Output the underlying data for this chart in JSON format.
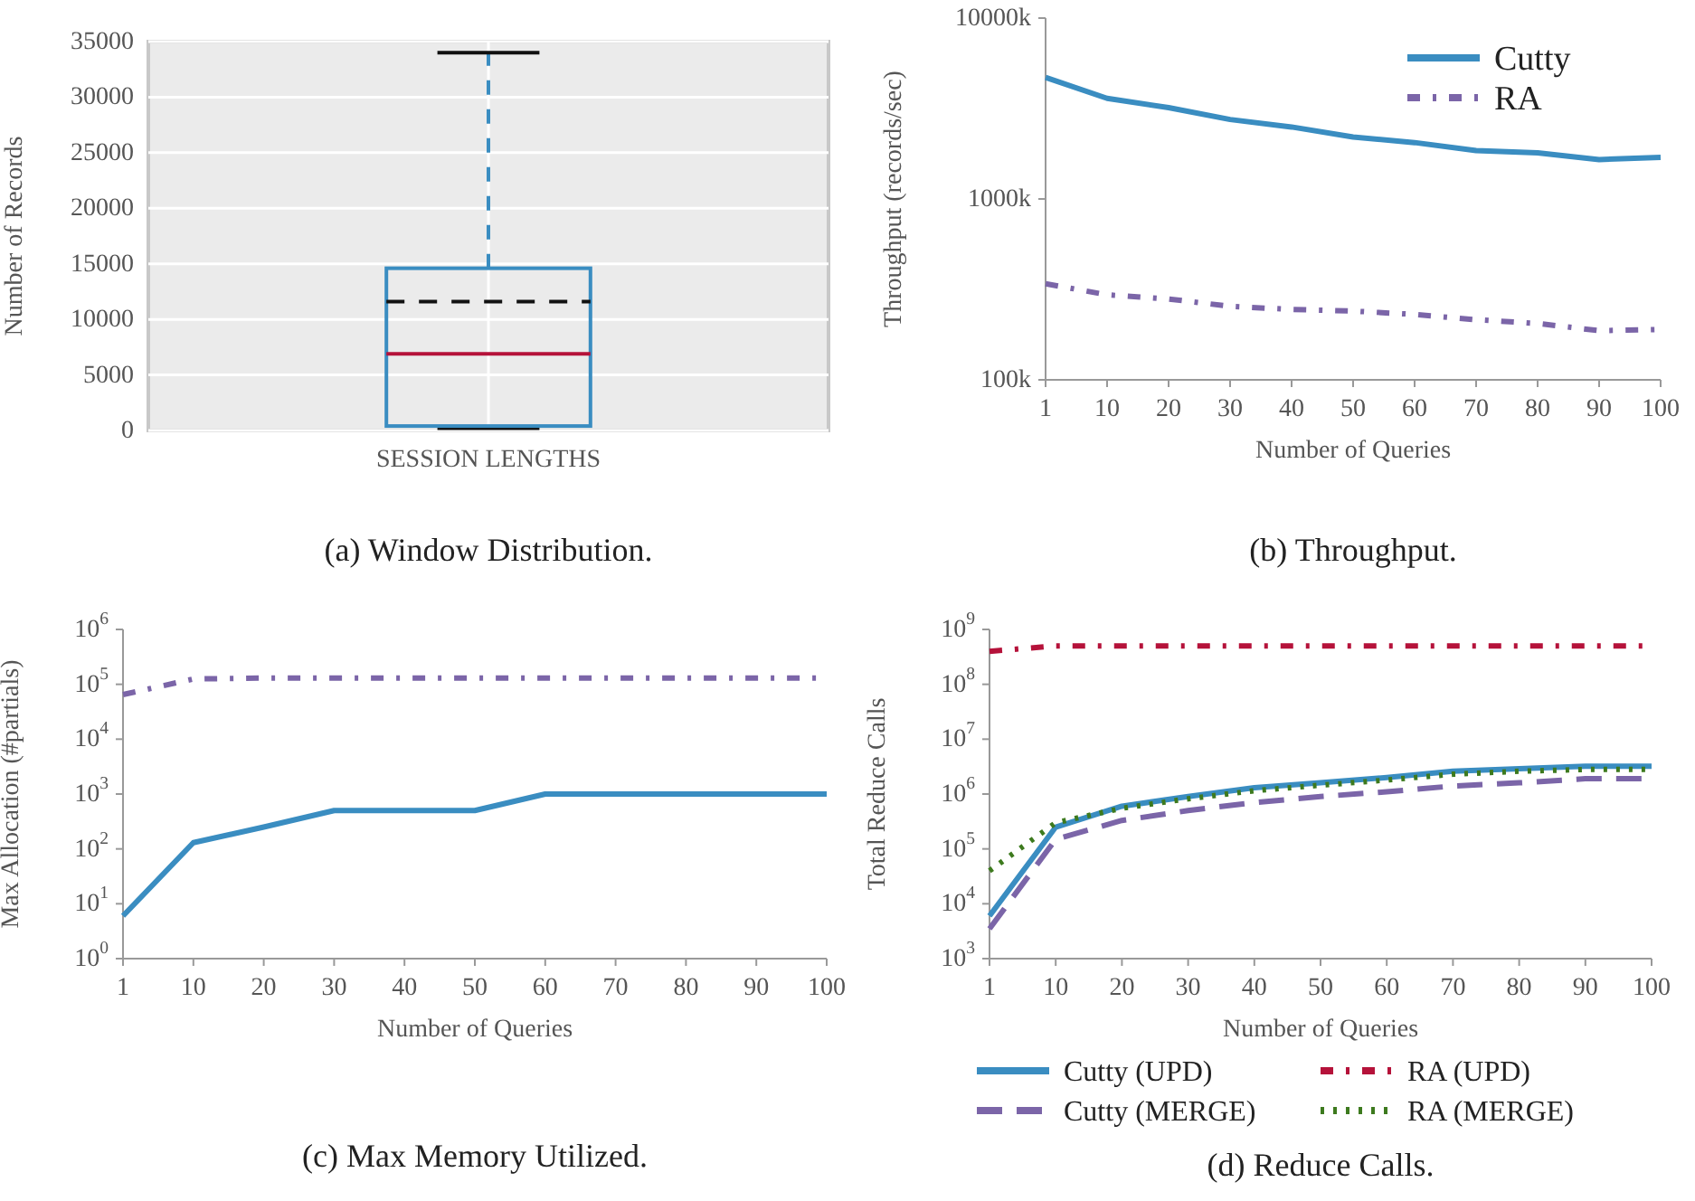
{
  "chart_data": [
    {
      "type": "box",
      "title": "(a) Window Distribution.",
      "ylabel": "Number of Records",
      "categories": [
        "SESSION LENGTHS"
      ],
      "boxes": [
        {
          "low": 200,
          "q1": 400,
          "median": 6900,
          "q3": 14600,
          "high": 34000,
          "mean": 11600
        }
      ],
      "color": "#3a8dc1",
      "ylim": [
        0,
        35000
      ],
      "yticks": [
        0,
        5000,
        10000,
        15000,
        20000,
        25000,
        30000,
        35000
      ],
      "grid": true
    },
    {
      "type": "line",
      "title": "(b) Throughput.",
      "xlabel": "Number of Queries",
      "ylabel": "Throughput (records/sec)",
      "log": true,
      "legend": "top right",
      "categories": [
        "1",
        "10",
        "20",
        "30",
        "40",
        "50",
        "60",
        "70",
        "80",
        "90",
        "100"
      ],
      "ylim": [
        100000,
        10000000
      ],
      "yticks": [
        {
          "value": 100000,
          "label": "100k"
        },
        {
          "value": 1000000,
          "label": "1000k"
        },
        {
          "value": 10000000,
          "label": "10000k"
        }
      ],
      "series": [
        {
          "name": "Cutty",
          "color": "#3a8dc1",
          "line_style": "solid",
          "values": [
            4700000,
            3600000,
            3200000,
            2750000,
            2500000,
            2200000,
            2050000,
            1850000,
            1800000,
            1650000,
            1700000
          ]
        },
        {
          "name": "RA",
          "color": "#7b65a8",
          "line_style": "dashdot",
          "values": [
            340000,
            295000,
            280000,
            255000,
            245000,
            240000,
            230000,
            215000,
            205000,
            187000,
            190000
          ]
        }
      ]
    },
    {
      "type": "line",
      "title": "(c) Max Memory Utilized.",
      "xlabel": "Number of Queries",
      "ylabel": "Max Allocation (#partials)",
      "log": true,
      "categories": [
        "1",
        "10",
        "20",
        "30",
        "40",
        "50",
        "60",
        "70",
        "80",
        "90",
        "100"
      ],
      "ylim": [
        1,
        1000000
      ],
      "yticks": [
        {
          "value": 1,
          "label": "10$^{0}$"
        },
        {
          "value": 10,
          "label": "10$^{1}$"
        },
        {
          "value": 100,
          "label": "10$^{2}$"
        },
        {
          "value": 1000,
          "label": "10$^{3}$"
        },
        {
          "value": 10000,
          "label": "10$^{4}$"
        },
        {
          "value": 100000,
          "label": "10$^{5}$"
        },
        {
          "value": 1000000,
          "label": "10$^{6}$"
        }
      ],
      "series": [
        {
          "color": "#3a8dc1",
          "line_style": "solid",
          "values": [
            6,
            130,
            250,
            500,
            500,
            500,
            1000,
            1000,
            1000,
            1000,
            1000
          ]
        },
        {
          "color": "#7b65a8",
          "line_style": "dashdot",
          "values": [
            65000,
            125000,
            130000,
            130000,
            130000,
            130000,
            130000,
            130000,
            130000,
            130000,
            130000
          ]
        }
      ]
    },
    {
      "type": "line",
      "title": "(d) Reduce Calls.",
      "xlabel": "Number of Queries",
      "ylabel": "Total Reduce Calls",
      "log": true,
      "legend": "bottom",
      "categories": [
        "1",
        "10",
        "20",
        "30",
        "40",
        "50",
        "60",
        "70",
        "80",
        "90",
        "100"
      ],
      "ylim": [
        1000,
        1000000000
      ],
      "yticks": [
        {
          "value": 1000,
          "label": "10$^{3}$"
        },
        {
          "value": 10000,
          "label": "10$^{4}$"
        },
        {
          "value": 100000,
          "label": "10$^{5}$"
        },
        {
          "value": 1000000,
          "label": "10$^{6}$"
        },
        {
          "value": 10000000,
          "label": "10$^{7}$"
        },
        {
          "value": 100000000,
          "label": "10$^{8}$"
        },
        {
          "value": 1000000000,
          "label": "10$^{9}$"
        }
      ],
      "series": [
        {
          "name": "Cutty (UPD)",
          "color": "#3a8dc1",
          "line_style": "solid",
          "values": [
            6000,
            250000,
            600000,
            900000,
            1300000,
            1600000,
            2000000,
            2600000,
            2900000,
            3200000,
            3200000
          ]
        },
        {
          "name": "Cutty (MERGE)",
          "color": "#7b65a8",
          "line_style": "dashed",
          "values": [
            3500,
            150000,
            330000,
            500000,
            700000,
            900000,
            1100000,
            1400000,
            1600000,
            1900000,
            1900000
          ]
        },
        {
          "name": "RA (UPD)",
          "color": "#b5123a",
          "line_style": "dashdot",
          "values": [
            400000000,
            500000000,
            500000000,
            500000000,
            500000000,
            500000000,
            500000000,
            500000000,
            500000000,
            500000000,
            500000000
          ]
        },
        {
          "name": "RA (MERGE)",
          "color": "#3d7a1e",
          "line_style": "dotted",
          "values": [
            40000,
            300000,
            550000,
            820000,
            1150000,
            1450000,
            1800000,
            2300000,
            2600000,
            2800000,
            2800000
          ]
        }
      ]
    }
  ]
}
